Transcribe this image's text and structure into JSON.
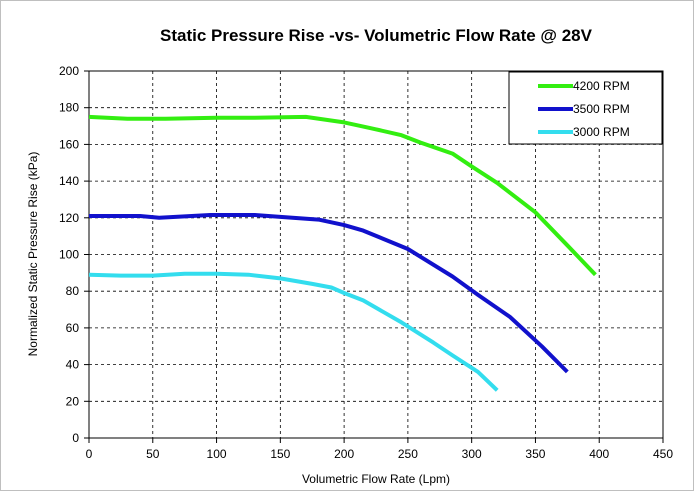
{
  "chart_data": {
    "type": "line",
    "title": "Static Pressure Rise -vs- Volumetric Flow Rate @ 28V",
    "xlabel": "Volumetric Flow Rate (Lpm)",
    "ylabel": "Normalized Static Pressure Rise (kPa)",
    "xlim": [
      0,
      450
    ],
    "ylim": [
      0,
      200
    ],
    "xticks": [
      "0",
      "50",
      "100",
      "150",
      "200",
      "250",
      "300",
      "350",
      "400",
      "450"
    ],
    "yticks": [
      "0",
      "20",
      "40",
      "60",
      "80",
      "100",
      "120",
      "140",
      "160",
      "180",
      "200"
    ],
    "grid": {
      "x": true,
      "y": true,
      "dash": true
    },
    "legend": "top-right",
    "series": [
      {
        "name": "4200 RPM",
        "color": "#33ee11",
        "x": [
          0,
          30,
          60,
          100,
          130,
          170,
          200,
          220,
          245,
          260,
          285,
          300,
          320,
          350,
          375,
          397
        ],
        "y": [
          175,
          174,
          174,
          174.5,
          174.5,
          175,
          172,
          169,
          165,
          161,
          155,
          148,
          139,
          123,
          105,
          89
        ]
      },
      {
        "name": "3500 RPM",
        "color": "#1111cc",
        "x": [
          0,
          40,
          55,
          95,
          130,
          150,
          180,
          200,
          215,
          250,
          285,
          305,
          330,
          355,
          375
        ],
        "y": [
          121,
          121,
          120,
          121.5,
          121.5,
          120.5,
          119,
          116,
          113,
          103,
          88,
          78,
          66,
          50,
          36
        ]
      },
      {
        "name": "3000 RPM",
        "color": "#33ddee",
        "x": [
          0,
          25,
          50,
          75,
          100,
          125,
          150,
          175,
          190,
          200,
          215,
          245,
          270,
          285,
          305,
          320
        ],
        "y": [
          89,
          88.5,
          88.5,
          89.5,
          89.5,
          89,
          87,
          84,
          82,
          79,
          75,
          63,
          52,
          45,
          36,
          26
        ]
      }
    ]
  }
}
